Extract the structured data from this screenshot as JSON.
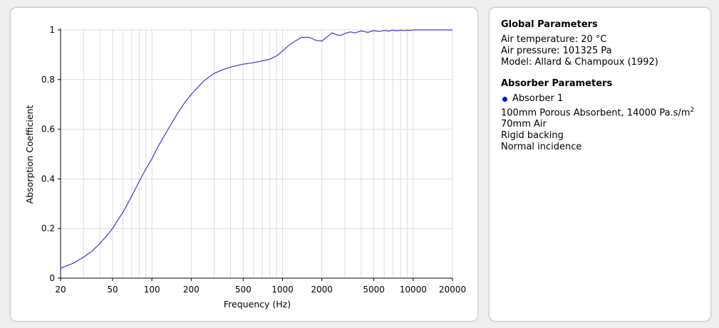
{
  "chart_data": {
    "type": "line",
    "xlabel": "Frequency (Hz)",
    "ylabel": "Absorption Coefficient",
    "x_scale": "log",
    "xlim": [
      20,
      20000
    ],
    "ylim": [
      0,
      1
    ],
    "x_ticks": [
      "20",
      "50",
      "100",
      "200",
      "500",
      "1000",
      "2000",
      "5000",
      "10000",
      "20000"
    ],
    "y_ticks": [
      "0",
      "0.2",
      "0.4",
      "0.6",
      "0.8",
      "1"
    ],
    "grid": true,
    "series": [
      {
        "color": "#3a3ad6",
        "x": [
          20,
          25,
          30,
          35,
          40,
          45,
          50,
          55,
          60,
          70,
          80,
          90,
          100,
          110,
          125,
          140,
          160,
          180,
          200,
          250,
          300,
          350,
          400,
          500,
          600,
          700,
          800,
          900,
          1000,
          1100,
          1250,
          1400,
          1600,
          1800,
          2000,
          2200,
          2400,
          2600,
          2800,
          3000,
          3300,
          3600,
          4000,
          4500,
          5000,
          5500,
          6000,
          6500,
          7000,
          7500,
          8000,
          8500,
          9000,
          9500,
          10000,
          12000,
          14000,
          16000,
          18000,
          20000
        ],
        "y": [
          0.04,
          0.06,
          0.085,
          0.11,
          0.14,
          0.17,
          0.2,
          0.235,
          0.265,
          0.33,
          0.39,
          0.44,
          0.48,
          0.525,
          0.575,
          0.62,
          0.67,
          0.71,
          0.74,
          0.795,
          0.825,
          0.84,
          0.85,
          0.862,
          0.868,
          0.875,
          0.882,
          0.895,
          0.915,
          0.935,
          0.955,
          0.97,
          0.97,
          0.958,
          0.955,
          0.972,
          0.988,
          0.98,
          0.978,
          0.985,
          0.992,
          0.988,
          0.996,
          0.99,
          0.997,
          0.993,
          0.998,
          0.995,
          0.999,
          0.996,
          0.999,
          0.997,
          0.999,
          0.998,
          1.0,
          1.0,
          1.0,
          1.0,
          1.0,
          1.0
        ]
      }
    ]
  },
  "info": {
    "global_title": "Global Parameters",
    "air_temperature": "Air temperature: 20 °C",
    "air_pressure": "Air pressure: 101325 Pa",
    "model": "Model: Allard & Champoux (1992)",
    "absorber_title": "Absorber Parameters",
    "absorber_name": "Absorber 1",
    "absorber_color": "#0000cc",
    "layer1_text": "100mm Porous Absorbent, 14000 Pa.s/m",
    "layer1_sup": "2",
    "layer2": "70mm Air",
    "backing": "Rigid backing",
    "incidence": "Normal incidence"
  }
}
